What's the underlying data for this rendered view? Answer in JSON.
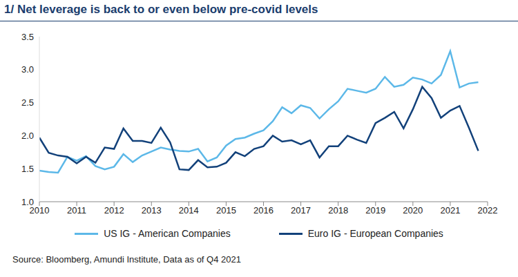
{
  "chart_data": {
    "type": "line",
    "title": "1/ Net leverage is back to or even below pre-covid levels",
    "source": "Source: Bloomberg, Amundi Institute, Data as of Q4 2021",
    "x": [
      2010,
      2010.25,
      2010.5,
      2010.75,
      2011,
      2011.25,
      2011.5,
      2011.75,
      2012,
      2012.25,
      2012.5,
      2012.75,
      2013,
      2013.25,
      2013.5,
      2013.75,
      2014,
      2014.25,
      2014.5,
      2014.75,
      2015,
      2015.25,
      2015.5,
      2015.75,
      2016,
      2016.25,
      2016.5,
      2016.75,
      2017,
      2017.25,
      2017.5,
      2017.75,
      2018,
      2018.25,
      2018.5,
      2018.75,
      2019,
      2019.25,
      2019.5,
      2019.75,
      2020,
      2020.25,
      2020.5,
      2020.75,
      2021,
      2021.25,
      2021.5,
      2021.75
    ],
    "series": [
      {
        "name": "US IG - American Companies",
        "color": "#5cb8e8",
        "values": [
          1.47,
          1.45,
          1.44,
          1.68,
          1.62,
          1.69,
          1.54,
          1.49,
          1.53,
          1.72,
          1.6,
          1.7,
          1.76,
          1.82,
          1.79,
          1.77,
          1.76,
          1.8,
          1.61,
          1.67,
          1.85,
          1.95,
          1.97,
          2.03,
          2.08,
          2.22,
          2.43,
          2.34,
          2.46,
          2.42,
          2.26,
          2.4,
          2.52,
          2.71,
          2.68,
          2.65,
          2.71,
          2.89,
          2.74,
          2.77,
          2.88,
          2.85,
          2.79,
          2.92,
          3.28,
          2.73,
          2.79,
          2.81
        ]
      },
      {
        "name": "Euro IG - European Companies",
        "color": "#12417a",
        "values": [
          1.97,
          1.74,
          1.7,
          1.68,
          1.58,
          1.68,
          1.59,
          1.82,
          1.8,
          2.11,
          1.92,
          1.92,
          1.89,
          2.12,
          1.9,
          1.49,
          1.48,
          1.63,
          1.52,
          1.53,
          1.59,
          1.75,
          1.69,
          1.8,
          1.84,
          2.0,
          1.91,
          1.93,
          1.87,
          1.93,
          1.67,
          1.84,
          1.84,
          2.0,
          1.94,
          1.89,
          2.19,
          2.27,
          2.36,
          2.11,
          2.4,
          2.74,
          2.57,
          2.27,
          2.38,
          2.45,
          2.12,
          1.77
        ]
      }
    ],
    "xlim": [
      2010,
      2022
    ],
    "xticks": [
      2010,
      2011,
      2012,
      2013,
      2014,
      2015,
      2016,
      2017,
      2018,
      2019,
      2020,
      2021,
      2022
    ],
    "ylim": [
      1,
      3.5
    ],
    "yticks": [
      {
        "value": 1,
        "label": "1.0"
      },
      1.5,
      {
        "value": 2,
        "label": "2.0"
      },
      2.5,
      {
        "value": 3,
        "label": "3.0"
      },
      3.5
    ],
    "grid": false,
    "legend": "bottom"
  }
}
